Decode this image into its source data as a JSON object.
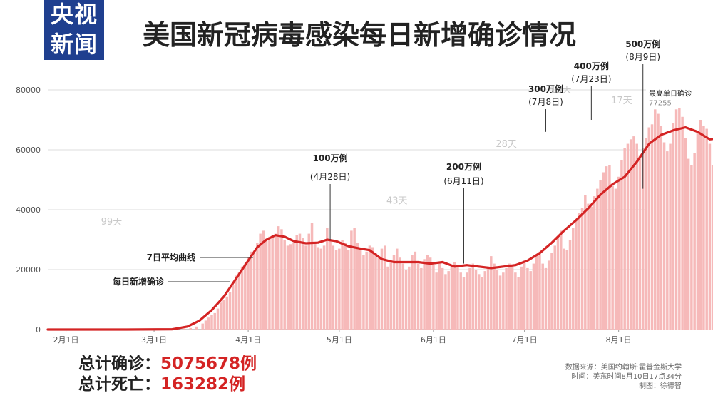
{
  "brand": {
    "line1": "央视",
    "line2": "新闻"
  },
  "title": "美国新冠病毒感染每日新增确诊情况",
  "chart_data": {
    "type": "bar",
    "y_ticks": [
      "80000",
      "60000",
      "40000",
      "20000",
      "0"
    ],
    "ylim": [
      0,
      80000
    ],
    "x_labels": [
      "2月1日",
      "3月1日",
      "4月1日",
      "5月1日",
      "6月1日",
      "7月1日",
      "8月1日"
    ],
    "x_label_days": [
      0,
      29,
      60,
      90,
      121,
      151,
      182
    ],
    "x_range_days": [
      -6,
      191
    ],
    "series": [
      {
        "name": "每日新增确诊",
        "values": [
          [
            25,
            0
          ],
          [
            30,
            2
          ],
          [
            33,
            5
          ],
          [
            36,
            60
          ],
          [
            39,
            300
          ],
          [
            41,
            500
          ],
          [
            43,
            1000
          ],
          [
            45,
            2000
          ],
          [
            46,
            3000
          ],
          [
            47,
            4000
          ],
          [
            48,
            5000
          ],
          [
            49,
            5500
          ],
          [
            50,
            7000
          ],
          [
            51,
            9000
          ],
          [
            52,
            10000
          ],
          [
            53,
            11000
          ],
          [
            54,
            12500
          ],
          [
            55,
            15000
          ],
          [
            56,
            18000
          ],
          [
            57,
            19000
          ],
          [
            58,
            21000
          ],
          [
            59,
            22000
          ],
          [
            60,
            24000
          ],
          [
            61,
            26000
          ],
          [
            62,
            25500
          ],
          [
            63,
            29000
          ],
          [
            64,
            32000
          ],
          [
            65,
            33000
          ],
          [
            66,
            30000
          ],
          [
            67,
            31000
          ],
          [
            68,
            31500
          ],
          [
            69,
            32000
          ],
          [
            70,
            34500
          ],
          [
            71,
            33500
          ],
          [
            72,
            30000
          ],
          [
            73,
            28000
          ],
          [
            74,
            28500
          ],
          [
            75,
            29000
          ],
          [
            76,
            31500
          ],
          [
            77,
            32000
          ],
          [
            78,
            30500
          ],
          [
            79,
            28000
          ],
          [
            80,
            32000
          ],
          [
            81,
            35500
          ],
          [
            82,
            29000
          ],
          [
            83,
            27500
          ],
          [
            84,
            27000
          ],
          [
            85,
            28000
          ],
          [
            86,
            34000
          ],
          [
            87,
            30000
          ],
          [
            88,
            28000
          ],
          [
            89,
            26500
          ],
          [
            90,
            27000
          ],
          [
            91,
            30000
          ],
          [
            92,
            29000
          ],
          [
            93,
            26500
          ],
          [
            94,
            33000
          ],
          [
            95,
            34000
          ],
          [
            96,
            29000
          ],
          [
            97,
            27000
          ],
          [
            98,
            25000
          ],
          [
            99,
            26000
          ],
          [
            100,
            28000
          ],
          [
            101,
            27500
          ],
          [
            102,
            25500
          ],
          [
            103,
            24000
          ],
          [
            104,
            27000
          ],
          [
            105,
            28000
          ],
          [
            106,
            21000
          ],
          [
            107,
            23000
          ],
          [
            108,
            25000
          ],
          [
            109,
            27000
          ],
          [
            110,
            24000
          ],
          [
            111,
            22000
          ],
          [
            112,
            20000
          ],
          [
            113,
            21000
          ],
          [
            114,
            25000
          ],
          [
            115,
            26000
          ],
          [
            116,
            22000
          ],
          [
            117,
            20500
          ],
          [
            118,
            23500
          ],
          [
            119,
            25000
          ],
          [
            120,
            24000
          ],
          [
            121,
            21500
          ],
          [
            122,
            19000
          ],
          [
            123,
            22000
          ],
          [
            124,
            20500
          ],
          [
            125,
            18500
          ],
          [
            126,
            19500
          ],
          [
            127,
            21000
          ],
          [
            128,
            22500
          ],
          [
            129,
            21500
          ],
          [
            130,
            19000
          ],
          [
            131,
            17500
          ],
          [
            132,
            19000
          ],
          [
            133,
            20500
          ],
          [
            134,
            22000
          ],
          [
            135,
            20000
          ],
          [
            136,
            18500
          ],
          [
            137,
            17500
          ],
          [
            138,
            19500
          ],
          [
            139,
            21000
          ],
          [
            140,
            24500
          ],
          [
            141,
            22000
          ],
          [
            142,
            20000
          ],
          [
            143,
            18000
          ],
          [
            144,
            19000
          ],
          [
            145,
            20500
          ],
          [
            146,
            22000
          ],
          [
            147,
            21500
          ],
          [
            148,
            19000
          ],
          [
            149,
            17500
          ],
          [
            150,
            21000
          ],
          [
            151,
            23000
          ],
          [
            152,
            20500
          ],
          [
            153,
            19500
          ],
          [
            154,
            22000
          ],
          [
            155,
            25000
          ],
          [
            156,
            26000
          ],
          [
            157,
            22000
          ],
          [
            158,
            20500
          ],
          [
            159,
            23000
          ],
          [
            160,
            25500
          ],
          [
            161,
            28000
          ],
          [
            162,
            31000
          ],
          [
            163,
            33000
          ],
          [
            164,
            27000
          ],
          [
            165,
            26500
          ],
          [
            166,
            30000
          ],
          [
            167,
            34000
          ],
          [
            168,
            36500
          ],
          [
            169,
            39000
          ],
          [
            170,
            40500
          ],
          [
            171,
            45000
          ],
          [
            172,
            42000
          ],
          [
            173,
            41000
          ],
          [
            174,
            44500
          ],
          [
            175,
            47000
          ],
          [
            176,
            50000
          ],
          [
            177,
            52500
          ],
          [
            178,
            54500
          ],
          [
            179,
            55000
          ],
          [
            180,
            48000
          ],
          [
            181,
            47000
          ],
          [
            182,
            51000
          ],
          [
            183,
            56500
          ],
          [
            184,
            60500
          ],
          [
            185,
            62000
          ],
          [
            186,
            63500
          ],
          [
            187,
            64500
          ],
          [
            188,
            62000
          ],
          [
            189,
            58000
          ],
          [
            190,
            60500
          ],
          [
            191,
            64000
          ],
          [
            192,
            67500
          ],
          [
            193,
            68500
          ],
          [
            194,
            73500
          ],
          [
            195,
            72000
          ],
          [
            196,
            68000
          ],
          [
            197,
            62500
          ],
          [
            198,
            59500
          ],
          [
            199,
            62000
          ],
          [
            200,
            69000
          ],
          [
            201,
            73500
          ],
          [
            202,
            74000
          ],
          [
            203,
            71000
          ],
          [
            204,
            64000
          ],
          [
            205,
            57000
          ],
          [
            206,
            55000
          ],
          [
            207,
            59000
          ],
          [
            208,
            66000
          ],
          [
            209,
            70000
          ],
          [
            210,
            68000
          ],
          [
            211,
            67000
          ],
          [
            212,
            62000
          ],
          [
            213,
            55000
          ],
          [
            214,
            47500
          ],
          [
            215,
            45000
          ],
          [
            216,
            56000
          ],
          [
            217,
            58000
          ],
          [
            218,
            59500
          ],
          [
            219,
            56000
          ],
          [
            220,
            54000
          ],
          [
            221,
            49000
          ],
          [
            222,
            47000
          ]
        ]
      },
      {
        "name": "7日平均曲线",
        "values": [
          [
            -6,
            0
          ],
          [
            0,
            0
          ],
          [
            20,
            0
          ],
          [
            35,
            100
          ],
          [
            40,
            1000
          ],
          [
            44,
            3000
          ],
          [
            48,
            6500
          ],
          [
            52,
            11000
          ],
          [
            56,
            17000
          ],
          [
            60,
            23000
          ],
          [
            63,
            27500
          ],
          [
            66,
            30000
          ],
          [
            69,
            31500
          ],
          [
            72,
            31000
          ],
          [
            75,
            29500
          ],
          [
            79,
            28800
          ],
          [
            83,
            29000
          ],
          [
            86,
            30000
          ],
          [
            89,
            29500
          ],
          [
            93,
            27800
          ],
          [
            97,
            27000
          ],
          [
            100,
            26500
          ],
          [
            104,
            23500
          ],
          [
            108,
            22500
          ],
          [
            112,
            22500
          ],
          [
            116,
            22500
          ],
          [
            120,
            22000
          ],
          [
            124,
            22500
          ],
          [
            128,
            21000
          ],
          [
            132,
            21500
          ],
          [
            136,
            21000
          ],
          [
            140,
            20500
          ],
          [
            144,
            21000
          ],
          [
            148,
            21500
          ],
          [
            152,
            23000
          ],
          [
            156,
            25500
          ],
          [
            160,
            29000
          ],
          [
            164,
            33000
          ],
          [
            168,
            36500
          ],
          [
            172,
            40500
          ],
          [
            176,
            45000
          ],
          [
            180,
            48500
          ],
          [
            184,
            51000
          ],
          [
            188,
            56000
          ],
          [
            192,
            62000
          ],
          [
            196,
            65000
          ],
          [
            200,
            66500
          ],
          [
            204,
            67500
          ],
          [
            208,
            66000
          ],
          [
            212,
            63500
          ],
          [
            216,
            64000
          ],
          [
            218,
            62000
          ],
          [
            220,
            58000
          ],
          [
            222,
            54500
          ],
          [
            225,
            53500
          ],
          [
            226,
            54000
          ]
        ]
      }
    ],
    "reference": {
      "label": "最高单日确诊",
      "value": 77255
    },
    "callouts": [
      {
        "label": "100万例",
        "date": "(4月28日)",
        "day": 87,
        "value": 30000
      },
      {
        "label": "200万例",
        "date": "(6月11日)",
        "day": 131,
        "value": 22000
      },
      {
        "label": "300万例",
        "date": "(7月8日)",
        "day": 158,
        "value": 66000
      },
      {
        "label": "400万例",
        "date": "(7月23日)",
        "day": 173,
        "value": 70000
      },
      {
        "label": "500万例",
        "date": "(8月9日)",
        "day": 190,
        "value": 47000
      }
    ],
    "intervals": [
      {
        "label": "99天",
        "day": 15,
        "value": 35000
      },
      {
        "label": "43天",
        "day": 109,
        "value": 42000
      },
      {
        "label": "28天",
        "day": 145,
        "value": 61000
      },
      {
        "label": "15天",
        "day": 163,
        "value": 79000
      },
      {
        "label": "17天",
        "day": 183,
        "value": 75500
      }
    ],
    "series_labels": [
      {
        "label": "7日平均曲线",
        "day": 45,
        "value": 24000
      },
      {
        "label": "每日新增确诊",
        "day": 46,
        "value": 16000
      }
    ]
  },
  "totals": [
    {
      "label": "总计确诊：",
      "value": "5075678例"
    },
    {
      "label": "总计死亡：",
      "value": "163282例"
    }
  ],
  "source": {
    "line1": "数据来源：美国约翰斯·霍普金斯大学",
    "line2": "时间：美东时间8月10日17点34分",
    "line3": "制图：徐德智"
  },
  "colors": {
    "bar": "#f6b9b9",
    "line": "#d42424",
    "brand_bg": "#1f3f8f",
    "total_value": "#d42424"
  }
}
